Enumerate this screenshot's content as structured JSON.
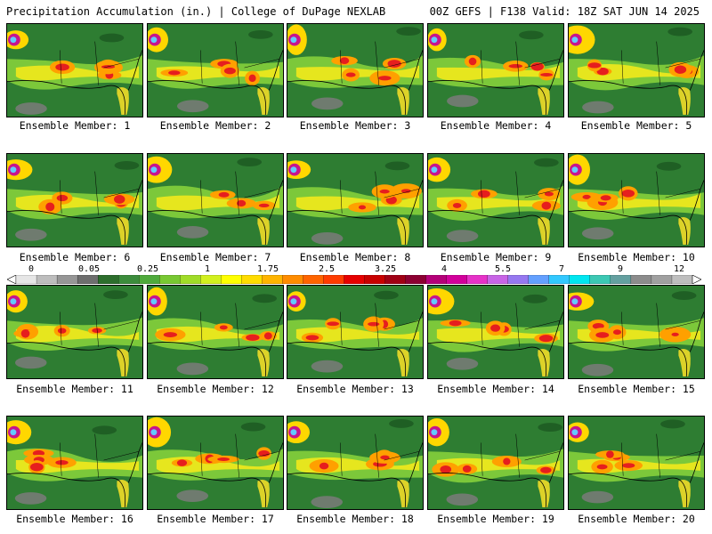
{
  "header": {
    "title": "Precipitation Accumulation (in.) | College of DuPage NEXLAB",
    "valid": "00Z GEFS | F138 Valid: 18Z SAT JUN 14 2025"
  },
  "panels": [
    {
      "label": "Ensemble Member: 1"
    },
    {
      "label": "Ensemble Member: 2"
    },
    {
      "label": "Ensemble Member: 3"
    },
    {
      "label": "Ensemble Member: 4"
    },
    {
      "label": "Ensemble Member: 5"
    },
    {
      "label": "Ensemble Member: 6"
    },
    {
      "label": "Ensemble Member: 7"
    },
    {
      "label": "Ensemble Member: 8"
    },
    {
      "label": "Ensemble Member: 9"
    },
    {
      "label": "Ensemble Member: 10"
    },
    {
      "label": "Ensemble Member: 11"
    },
    {
      "label": "Ensemble Member: 12"
    },
    {
      "label": "Ensemble Member: 13"
    },
    {
      "label": "Ensemble Member: 14"
    },
    {
      "label": "Ensemble Member: 15"
    },
    {
      "label": "Ensemble Member: 16"
    },
    {
      "label": "Ensemble Member: 17"
    },
    {
      "label": "Ensemble Member: 18"
    },
    {
      "label": "Ensemble Member: 19"
    },
    {
      "label": "Ensemble Member: 20"
    }
  ],
  "colorbar": {
    "labels": [
      "0",
      "0.05",
      "0.25",
      "1",
      "1.75",
      "2.5",
      "3.25",
      "4",
      "5.5",
      "7",
      "9",
      "12"
    ],
    "colors": [
      "#e6e6e6",
      "#bdbdbd",
      "#969696",
      "#6e6e6e",
      "#2d6e2d",
      "#3c8c3c",
      "#4faa3c",
      "#78c832",
      "#a0dc28",
      "#d2f01e",
      "#ffff00",
      "#ffdc00",
      "#ffb400",
      "#ff8c00",
      "#ff6400",
      "#ff3c00",
      "#e60000",
      "#c80000",
      "#a00014",
      "#8c0032",
      "#b40078",
      "#d2009b",
      "#e632c8",
      "#c864e6",
      "#9678f0",
      "#64a0ff",
      "#32c8ff",
      "#00e6f0",
      "#3cc8b4",
      "#64a0a0",
      "#8c8c8c",
      "#a0a0a0",
      "#bebebe"
    ]
  }
}
